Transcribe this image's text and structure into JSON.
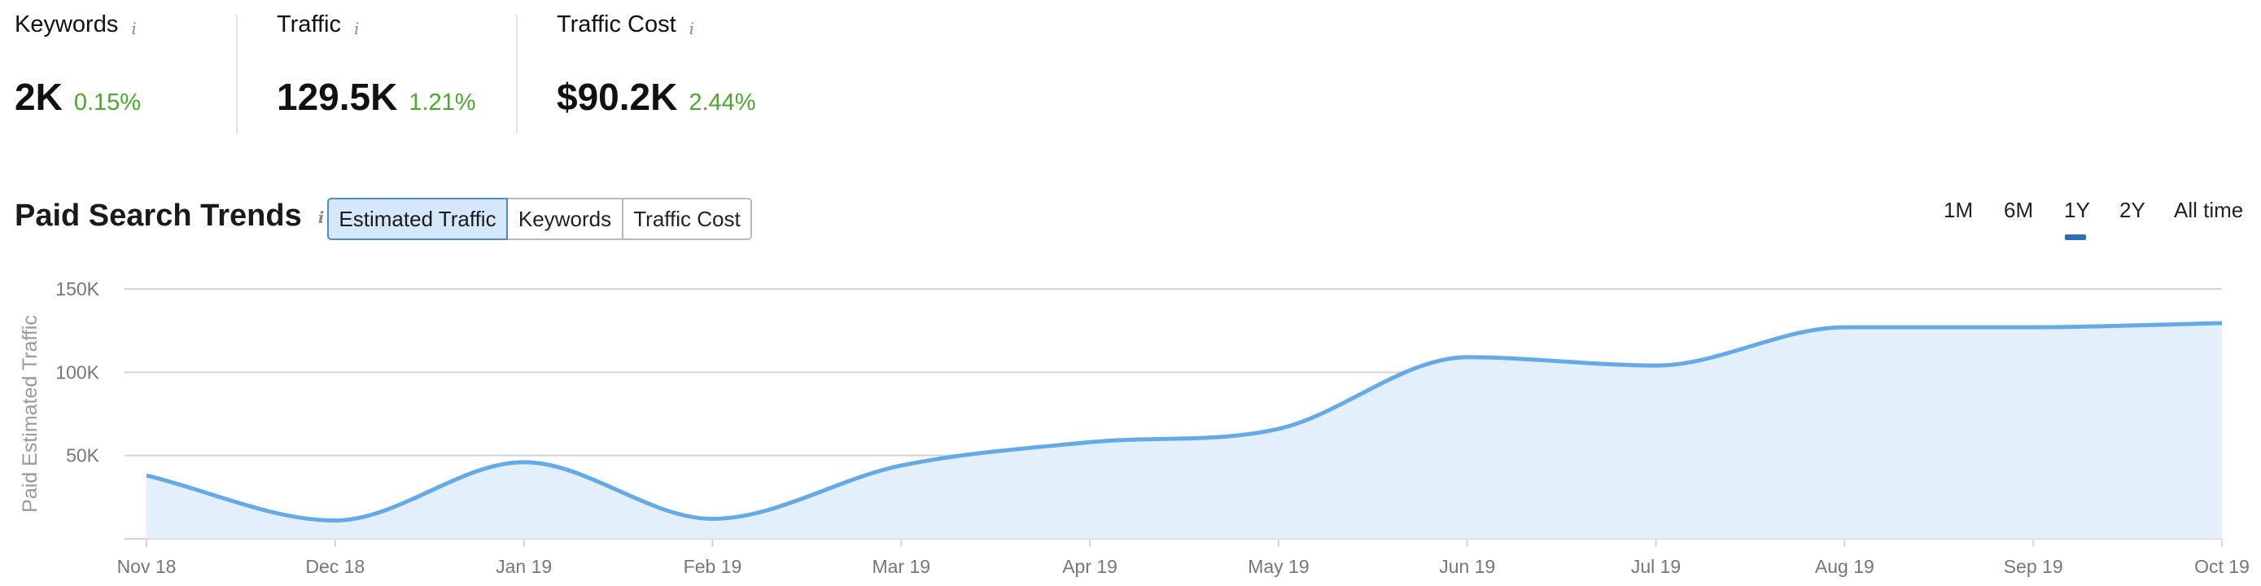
{
  "metrics": [
    {
      "label": "Keywords",
      "value": "2K",
      "delta": "0.15%"
    },
    {
      "label": "Traffic",
      "value": "129.5K",
      "delta": "1.21%"
    },
    {
      "label": "Traffic Cost",
      "value": "$90.2K",
      "delta": "2.44%"
    }
  ],
  "info_glyph": "i",
  "section": {
    "title": "Paid Search Trends"
  },
  "segments": [
    {
      "label": "Estimated Traffic",
      "active": true
    },
    {
      "label": "Keywords",
      "active": false
    },
    {
      "label": "Traffic Cost",
      "active": false
    }
  ],
  "ranges": [
    {
      "label": "1M",
      "active": false
    },
    {
      "label": "6M",
      "active": false
    },
    {
      "label": "1Y",
      "active": true
    },
    {
      "label": "2Y",
      "active": false
    },
    {
      "label": "All time",
      "active": false
    }
  ],
  "colors": {
    "line": "#64aae8",
    "area": "#e3effb",
    "delta": "#4ba82d",
    "grid": "#d4d4d4",
    "active_tab": "#2c6fb6"
  },
  "chart_data": {
    "type": "area",
    "ylabel": "Paid Estimated Traffic",
    "ylim": [
      0,
      150000
    ],
    "yticks": [
      {
        "value": 50000,
        "label": "50K"
      },
      {
        "value": 100000,
        "label": "100K"
      },
      {
        "value": 150000,
        "label": "150K"
      }
    ],
    "xticks": [
      "Nov 18",
      "Dec 18",
      "Jan 19",
      "Feb 19",
      "Mar 19",
      "Apr 19",
      "May 19",
      "Jun 19",
      "Jul 19",
      "Aug 19",
      "Sep 19",
      "Oct 19"
    ],
    "series": [
      {
        "values": [
          38000,
          11000,
          46000,
          12000,
          44000,
          58000,
          66000,
          109000,
          104000,
          127000,
          127000,
          129500
        ]
      }
    ],
    "grid": true
  }
}
